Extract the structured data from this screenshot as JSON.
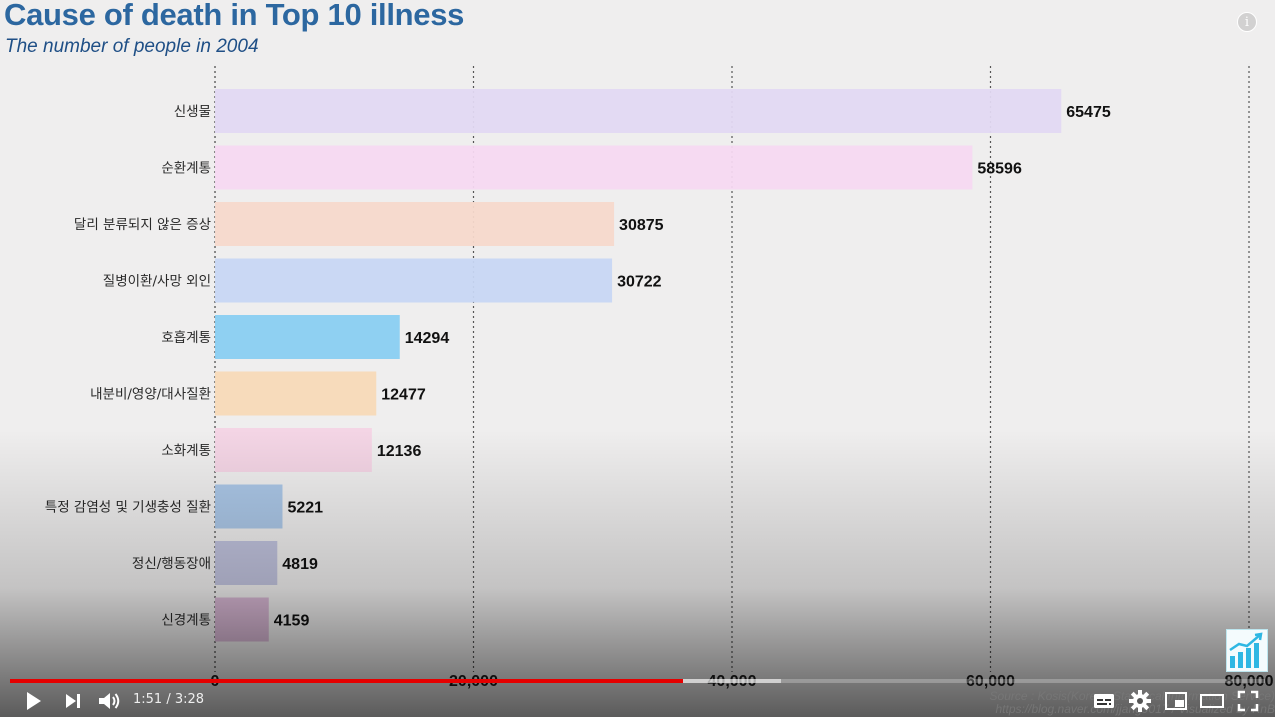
{
  "player": {
    "current_time": "1:51",
    "separator": " / ",
    "duration": "3:28",
    "progress_fraction": 0.536,
    "buffered_fraction": 0.614,
    "accent_color": "#e50000"
  },
  "overlay": {
    "source_line1": "Source : Kosis(Korean Statistical Information Service)",
    "source_line2": "https://blog.naver.com/jjang9017 / Visualized by KnB"
  },
  "icons": {
    "info": "info-icon",
    "play": "play-icon",
    "next": "next-icon",
    "volume": "volume-icon",
    "subtitles": "subtitles-icon",
    "settings": "gear-icon",
    "miniplayer": "miniplayer-icon",
    "theater": "theater-icon",
    "fullscreen": "fullscreen-icon",
    "channel_logo": "chart-logo-icon"
  },
  "chart_data": {
    "type": "bar",
    "orientation": "horizontal",
    "title": "Cause of death in Top 10 illness",
    "subtitle": "The number of people in 2004",
    "categories": [
      "신생물",
      "순환계통",
      "달리 분류되지 않은 증상",
      "질병이환/사망 외인",
      "호흡계통",
      "내분비/영양/대사질환",
      "소화계통",
      "특정 감염성 및 기생충성 질환",
      "정신/행동장애",
      "신경계통"
    ],
    "values": [
      65475,
      58596,
      30875,
      30722,
      14294,
      12477,
      12136,
      5221,
      4819,
      4159
    ],
    "colors": [
      "#e2d8f2",
      "#f5d8f1",
      "#f5d8cb",
      "#c7d6f3",
      "#89cdf1",
      "#f7d9b7",
      "#f3d3e4",
      "#a6c4e6",
      "#bec0dc",
      "#d6b3d2"
    ],
    "xlim": [
      0,
      80000
    ],
    "xticks": [
      0,
      20000,
      40000,
      60000,
      80000
    ],
    "xtick_labels": [
      "0",
      "20,000",
      "40,000",
      "60,000",
      "80,000"
    ],
    "grid": "vertical dotted",
    "legend": "none"
  }
}
